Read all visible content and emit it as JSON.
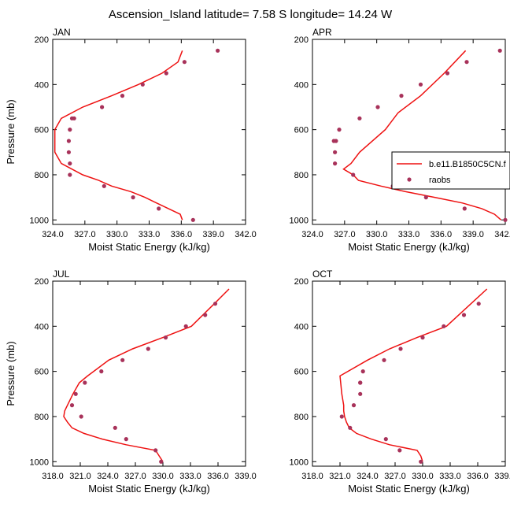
{
  "title": "Ascension_Island  latitude= 7.58 S longitude= 14.24 W",
  "colors": {
    "model": "#ee1111",
    "obs": "#a8325a"
  },
  "legend": {
    "model_label": "b.e11.B1850C5CN.f",
    "obs_label": "raobs"
  },
  "chart_data": [
    {
      "type": "line",
      "panel": "JAN",
      "xlabel": "Moist Static Energy (kJ/kg)",
      "ylabel": "Pressure (mb)",
      "xlim": [
        324,
        342
      ],
      "ylim": [
        1020,
        200
      ],
      "xticks": [
        324,
        327,
        330,
        333,
        336,
        339,
        342
      ],
      "xtick_labels": [
        "324.0",
        "327.0",
        "330.0",
        "333.0",
        "336.0",
        "339.0",
        "342.0"
      ],
      "yticks": [
        200,
        400,
        600,
        800,
        1000
      ],
      "ytick_labels": [
        "200",
        "400",
        "600",
        "800",
        "1000"
      ],
      "series": [
        {
          "name": "b.e11.B1850C5CN.f",
          "kind": "line",
          "x": [
            336.1,
            335.9,
            334.8,
            333.7,
            332.6,
            331.3,
            329.5,
            328.3,
            326.8,
            325.8,
            324.8,
            324.2,
            324.2,
            324.8,
            326.8,
            329.5,
            332.0,
            334.2,
            335.7,
            336.1
          ],
          "y": [
            1000,
            975,
            950,
            925,
            900,
            875,
            850,
            825,
            800,
            775,
            750,
            700,
            600,
            550,
            500,
            450,
            400,
            350,
            300,
            250
          ]
        },
        {
          "name": "raobs",
          "kind": "markers",
          "x": [
            337.1,
            333.9,
            331.5,
            328.8,
            325.6,
            325.6,
            325.5,
            325.5,
            325.6,
            325.8,
            326.0,
            328.6,
            330.5,
            332.4,
            334.6,
            336.3,
            339.4
          ],
          "y": [
            1000,
            950,
            900,
            850,
            800,
            750,
            700,
            650,
            600,
            550,
            550,
            500,
            450,
            400,
            350,
            300,
            250
          ]
        }
      ]
    },
    {
      "type": "line",
      "panel": "APR",
      "xlabel": "Moist Static Energy (kJ/kg)",
      "ylabel": "",
      "xlim": [
        324,
        342
      ],
      "ylim": [
        1020,
        200
      ],
      "xticks": [
        324,
        327,
        330,
        333,
        336,
        339,
        342
      ],
      "xtick_labels": [
        "324.0",
        "327.0",
        "330.0",
        "333.0",
        "336.0",
        "339.0",
        "342.0"
      ],
      "yticks": [
        200,
        400,
        600,
        800,
        1000
      ],
      "ytick_labels": [
        "200",
        "400",
        "600",
        "800",
        "1000"
      ],
      "series": [
        {
          "name": "b.e11.B1850C5CN.f",
          "kind": "line",
          "x": [
            341.6,
            341.0,
            339.8,
            338.0,
            335.4,
            332.7,
            330.4,
            328.3,
            327.8,
            326.9,
            327.6,
            328.4,
            330.8,
            332.0,
            334.1,
            336.3,
            338.3
          ],
          "y": [
            1000,
            975,
            950,
            925,
            900,
            875,
            850,
            825,
            800,
            775,
            750,
            700,
            600,
            525,
            450,
            350,
            250
          ]
        },
        {
          "name": "raobs",
          "kind": "markers",
          "x": [
            342.0,
            338.2,
            334.6,
            331.5,
            327.8,
            326.1,
            326.1,
            326.0,
            326.2,
            326.5,
            328.4,
            330.1,
            332.3,
            334.1,
            336.6,
            338.4,
            341.5
          ],
          "y": [
            1000,
            950,
            900,
            850,
            800,
            750,
            700,
            650,
            650,
            600,
            550,
            500,
            450,
            400,
            350,
            300,
            250
          ]
        }
      ]
    },
    {
      "type": "line",
      "panel": "JUL",
      "xlabel": "Moist Static Energy (kJ/kg)",
      "ylabel": "Pressure (mb)",
      "xlim": [
        318,
        339
      ],
      "ylim": [
        1020,
        200
      ],
      "xticks": [
        318,
        321,
        324,
        327,
        330,
        333,
        336,
        339
      ],
      "xtick_labels": [
        "318.0",
        "321.0",
        "324.0",
        "327.0",
        "330.0",
        "333.0",
        "336.0",
        "339.0"
      ],
      "yticks": [
        200,
        400,
        600,
        800,
        1000
      ],
      "ytick_labels": [
        "200",
        "400",
        "600",
        "800",
        "1000"
      ],
      "series": [
        {
          "name": "b.e11.B1850C5CN.f",
          "kind": "line",
          "x": [
            330.0,
            329.6,
            329.2,
            326.0,
            323.4,
            321.4,
            320.1,
            319.6,
            319.2,
            319.3,
            319.6,
            320.2,
            320.9,
            321.8,
            324.1,
            326.7,
            330.0,
            333.1,
            335.6,
            337.2
          ],
          "y": [
            1000,
            975,
            950,
            925,
            900,
            875,
            850,
            825,
            800,
            775,
            750,
            700,
            650,
            620,
            550,
            500,
            450,
            400,
            300,
            235
          ]
        },
        {
          "name": "raobs",
          "kind": "markers",
          "x": [
            329.8,
            329.2,
            326.0,
            324.8,
            321.1,
            320.1,
            320.5,
            321.5,
            323.3,
            325.6,
            328.4,
            330.3,
            332.5,
            334.6,
            335.7
          ],
          "y": [
            1000,
            950,
            900,
            850,
            800,
            750,
            700,
            650,
            600,
            550,
            500,
            450,
            400,
            350,
            300
          ]
        }
      ]
    },
    {
      "type": "line",
      "panel": "OCT",
      "xlabel": "Moist Static Energy (kJ/kg)",
      "ylabel": "",
      "xlim": [
        318,
        339
      ],
      "ylim": [
        1020,
        200
      ],
      "xticks": [
        318,
        321,
        324,
        327,
        330,
        333,
        336,
        339
      ],
      "xtick_labels": [
        "318.0",
        "321.0",
        "324.0",
        "327.0",
        "330.0",
        "333.0",
        "336.0",
        "339.0"
      ],
      "yticks": [
        200,
        400,
        600,
        800,
        1000
      ],
      "ytick_labels": [
        "200",
        "400",
        "600",
        "800",
        "1000"
      ],
      "series": [
        {
          "name": "b.e11.B1850C5CN.f",
          "kind": "line",
          "x": [
            330.0,
            329.8,
            329.4,
            326.4,
            324.4,
            322.8,
            322.0,
            321.7,
            321.5,
            321.4,
            321.4,
            321.2,
            321.0,
            324.0,
            326.4,
            329.4,
            332.6,
            337.0
          ],
          "y": [
            1000,
            975,
            950,
            925,
            900,
            875,
            850,
            825,
            800,
            775,
            750,
            700,
            620,
            550,
            500,
            450,
            400,
            235
          ]
        },
        {
          "name": "raobs",
          "kind": "markers",
          "x": [
            329.8,
            327.5,
            326.0,
            322.1,
            321.2,
            322.5,
            323.2,
            323.2,
            323.2,
            323.5,
            325.8,
            327.6,
            330.0,
            332.3,
            334.5,
            336.1
          ],
          "y": [
            1000,
            950,
            900,
            850,
            800,
            750,
            700,
            650,
            650,
            600,
            550,
            500,
            450,
            400,
            350,
            300
          ]
        }
      ]
    }
  ]
}
